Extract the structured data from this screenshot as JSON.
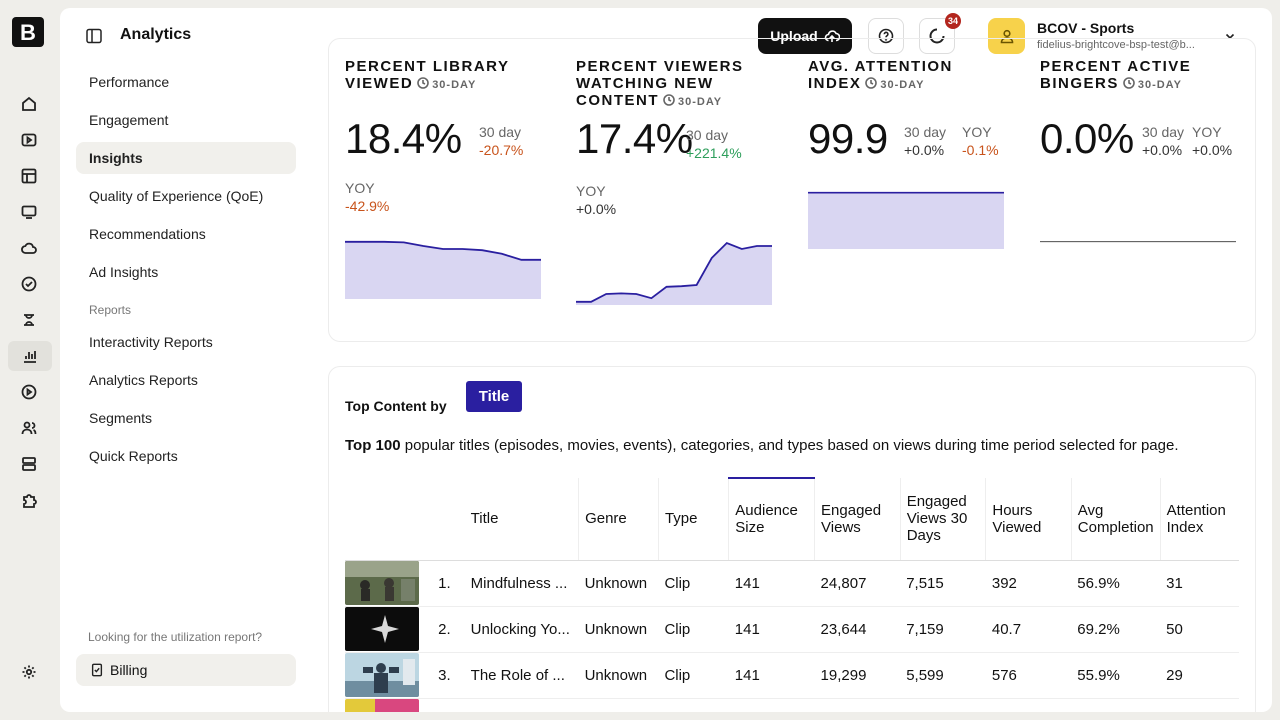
{
  "app": {
    "title": "Analytics"
  },
  "header": {
    "upload_label": "Upload",
    "notifications_count": "34",
    "account": {
      "name": "BCOV - Sports",
      "email": "fidelius-brightcove-bsp-test@b..."
    }
  },
  "rail_icons": [
    "home-icon",
    "video-icon",
    "table-icon",
    "screen-icon",
    "cloud-icon",
    "check-circle-icon",
    "coin-icon",
    "analytics-icon",
    "play-circle-icon",
    "users-icon",
    "server-icon",
    "puzzle-icon",
    "settings-icon"
  ],
  "nav": {
    "items": [
      {
        "label": "Performance"
      },
      {
        "label": "Engagement"
      },
      {
        "label": "Insights",
        "active": true
      },
      {
        "label": "Quality of Experience (QoE)"
      },
      {
        "label": "Recommendations"
      },
      {
        "label": "Ad Insights"
      }
    ],
    "reports_heading": "Reports",
    "report_items": [
      {
        "label": "Interactivity Reports"
      },
      {
        "label": "Analytics Reports"
      },
      {
        "label": "Segments"
      },
      {
        "label": "Quick Reports"
      }
    ],
    "footer_question": "Looking for the utilization report?",
    "billing_label": "Billing"
  },
  "kpis": [
    {
      "title": "Percent Library Viewed",
      "period": "30-DAY",
      "value": "18.4%",
      "c1_label": "30 day",
      "c1_value": "-20.7%",
      "c2_label": "YOY",
      "c2_value": "-42.9%",
      "spark": [
        0.92,
        0.92,
        0.92,
        0.91,
        0.85,
        0.8,
        0.8,
        0.78,
        0.72,
        0.62,
        0.62
      ]
    },
    {
      "title": "Percent Viewers Watching New Content",
      "period": "30-DAY",
      "value": "17.4%",
      "c1_label": "30 day",
      "c1_value": "+221.4%",
      "c2_label": "YOY",
      "c2_value": "+0.0%",
      "spark": [
        0.02,
        0.02,
        0.15,
        0.16,
        0.15,
        0.08,
        0.27,
        0.28,
        0.3,
        0.75,
        1.0,
        0.9,
        0.95,
        0.95
      ]
    },
    {
      "title": "Avg. Attention Index",
      "period": "30-DAY",
      "value": "99.9",
      "c1_label": "30 day",
      "c1_value": "+0.0%",
      "c2_label": "YOY",
      "c2_value": "-0.1%",
      "spark": [
        1,
        1
      ]
    },
    {
      "title": "Percent Active Bingers",
      "period": "30-DAY",
      "value": "0.0%",
      "c1_label": "30 day",
      "c1_value": "+0.0%",
      "c2_label": "YOY",
      "c2_value": "+0.0%",
      "spark": [
        0,
        0
      ]
    }
  ],
  "top_content": {
    "label": "Top Content by",
    "pill": "Title",
    "desc_bold": "Top 100",
    "desc_rest": " popular titles (episodes, movies, events), categories, and types based on views during time period selected for page.",
    "columns": [
      "Title",
      "Genre",
      "Type",
      "Audience Size",
      "Engaged Views",
      "Engaged Views 30 Days",
      "Hours Viewed",
      "Avg Completion",
      "Attention Index"
    ],
    "rows": [
      {
        "rank": "1.",
        "title": "Mindfulness ...",
        "genre": "Unknown",
        "type": "Clip",
        "audience": "141",
        "engaged": "24,807",
        "engaged30": "7,515",
        "hours": "392",
        "completion": "56.9%",
        "attention": "31"
      },
      {
        "rank": "2.",
        "title": "Unlocking Yo...",
        "genre": "Unknown",
        "type": "Clip",
        "audience": "141",
        "engaged": "23,644",
        "engaged30": "7,159",
        "hours": "40.7",
        "completion": "69.2%",
        "attention": "50"
      },
      {
        "rank": "3.",
        "title": "The Role of ...",
        "genre": "Unknown",
        "type": "Clip",
        "audience": "141",
        "engaged": "19,299",
        "engaged30": "5,599",
        "hours": "576",
        "completion": "55.9%",
        "attention": "29"
      }
    ]
  },
  "colors": {
    "accent": "#2a1fa0",
    "spark_fill": "#d9d6f2",
    "spark_line": "#2a1fa0",
    "negative": "#c8531b",
    "positive": "#2e9e5b"
  }
}
